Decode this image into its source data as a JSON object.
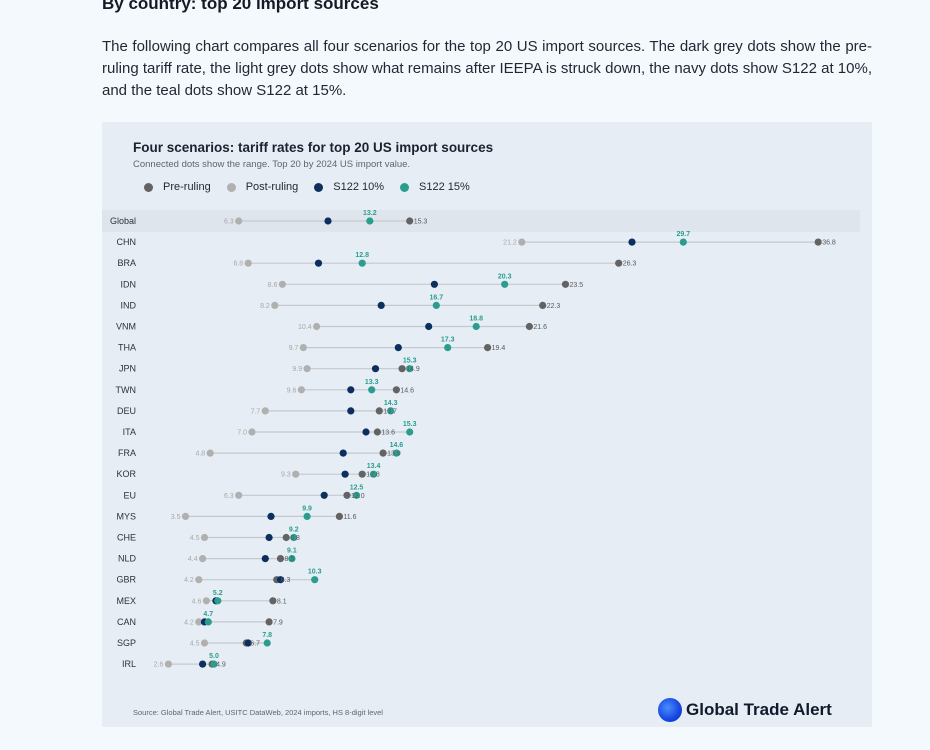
{
  "page": {
    "heading": "By country: top 20 import sources",
    "intro": "The following chart compares all four scenarios for the top 20 US import sources. The dark grey dots show the pre-ruling tariff rate, the light grey dots show what remains after IEEPA is struck down, the navy dots show S122 at 10%, and the teal dots show S122 at 15%."
  },
  "figure": {
    "source": "Source: Global Trade Alert, USITC DataWeb, 2024 imports, HS 8-digit level",
    "brand": "Global Trade Alert"
  },
  "colors": {
    "pre": "#636363",
    "post": "#b0b0b0",
    "s10": "#0d2f5e",
    "s15": "#2a9d8f",
    "range_line": "#c4c9cf",
    "global_band": "#dfe5ec"
  },
  "chart_data": {
    "type": "scatter",
    "title": "Four scenarios: tariff rates for top 20 US import sources",
    "subtitle": "Connected dots show the range. Top 20 by 2024 US import value.",
    "legend": [
      "Pre-ruling",
      "Post-ruling",
      "S122 10%",
      "S122 15%"
    ],
    "xlim": [
      0,
      40
    ],
    "rows": [
      {
        "label": "Global",
        "post": 6.3,
        "s10": 11.0,
        "s15": 13.2,
        "pre": 15.3
      },
      {
        "label": "CHN",
        "post": 21.2,
        "s10": 27.0,
        "s15": 29.7,
        "pre": 36.8
      },
      {
        "label": "BRA",
        "post": 6.8,
        "s10": 10.5,
        "s15": 12.8,
        "pre": 26.3
      },
      {
        "label": "IDN",
        "post": 8.6,
        "s10": 16.6,
        "s15": 20.3,
        "pre": 23.5
      },
      {
        "label": "IND",
        "post": 8.2,
        "s10": 13.8,
        "s15": 16.7,
        "pre": 22.3
      },
      {
        "label": "VNM",
        "post": 10.4,
        "s10": 16.3,
        "s15": 18.8,
        "pre": 21.6
      },
      {
        "label": "THA",
        "post": 9.7,
        "s10": 14.7,
        "s15": 17.3,
        "pre": 19.4
      },
      {
        "label": "JPN",
        "post": 9.9,
        "s10": 13.5,
        "s15": 15.3,
        "pre": 14.9
      },
      {
        "label": "TWN",
        "post": 9.6,
        "s10": 12.2,
        "s15": 13.3,
        "pre": 14.6
      },
      {
        "label": "DEU",
        "post": 7.7,
        "s10": 12.2,
        "s15": 14.3,
        "pre": 13.7
      },
      {
        "label": "ITA",
        "post": 7.0,
        "s10": 13.0,
        "s15": 15.3,
        "pre": 13.6
      },
      {
        "label": "FRA",
        "post": 4.8,
        "s10": 11.8,
        "s15": 14.6,
        "pre": 13.9
      },
      {
        "label": "KOR",
        "post": 9.3,
        "s10": 11.9,
        "s15": 13.4,
        "pre": 12.8
      },
      {
        "label": "EU",
        "post": 6.3,
        "s10": 10.8,
        "s15": 12.5,
        "pre": 12.0
      },
      {
        "label": "MYS",
        "post": 3.5,
        "s10": 8.0,
        "s15": 9.9,
        "pre": 11.6
      },
      {
        "label": "CHE",
        "post": 4.5,
        "s10": 7.9,
        "s15": 9.2,
        "pre": 8.8
      },
      {
        "label": "NLD",
        "post": 4.4,
        "s10": 7.7,
        "s15": 9.1,
        "pre": 8.5
      },
      {
        "label": "GBR",
        "post": 4.2,
        "s10": 8.5,
        "s15": 10.3,
        "pre": 8.3
      },
      {
        "label": "MEX",
        "post": 4.6,
        "s10": 5.1,
        "s15": 5.2,
        "pre": 8.1
      },
      {
        "label": "CAN",
        "post": 4.2,
        "s10": 4.5,
        "s15": 4.7,
        "pre": 7.9
      },
      {
        "label": "SGP",
        "post": 4.5,
        "s10": 6.8,
        "s15": 7.8,
        "pre": 6.7
      },
      {
        "label": "IRL",
        "post": 2.6,
        "s10": 4.4,
        "s15": 5.0,
        "pre": 4.9
      }
    ]
  }
}
